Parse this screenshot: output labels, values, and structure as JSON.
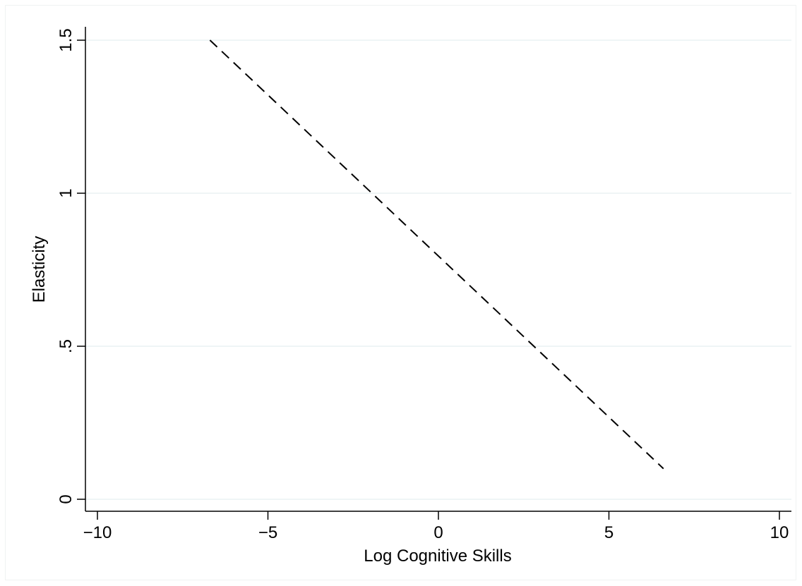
{
  "chart_data": {
    "type": "line",
    "title": "",
    "xlabel": "Log Cognitive Skills",
    "ylabel": "Elasticity",
    "xlim": [
      -10,
      10
    ],
    "ylim": [
      0,
      1.5
    ],
    "x_ticks": [
      -10,
      -5,
      0,
      5,
      10
    ],
    "x_tick_labels": [
      "−10",
      "−5",
      "0",
      "5",
      "10"
    ],
    "y_ticks": [
      0,
      0.5,
      1,
      1.5
    ],
    "y_tick_labels": [
      "0",
      ".5",
      "1",
      "1.5"
    ],
    "grid": "horizontal",
    "legend": "none",
    "series": [
      {
        "style": "dashed",
        "color": "#000000",
        "x": [
          -6.7,
          6.6
        ],
        "y": [
          1.5,
          0.1
        ]
      }
    ]
  },
  "colors": {
    "gridline": "#eaf2f3",
    "axis": "#000000",
    "frame_border": "#f0f3f2"
  }
}
